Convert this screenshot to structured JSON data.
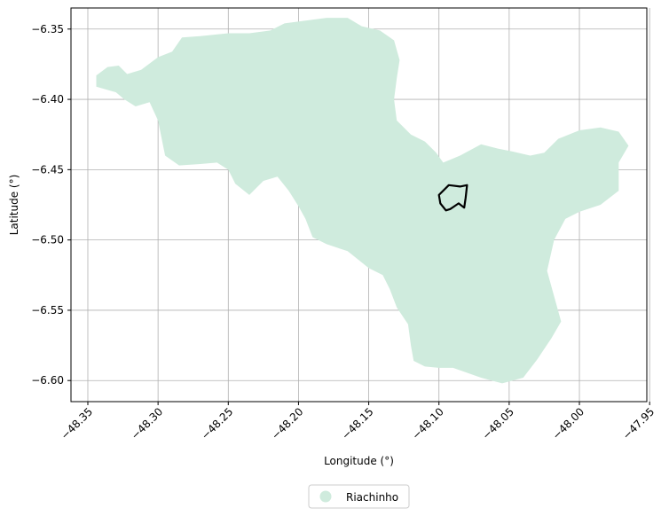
{
  "chart_data": {
    "type": "map",
    "xlabel": "Longitude (°)",
    "ylabel": "Latitude (°)",
    "xlim": [
      -48.362,
      -47.952
    ],
    "ylim": [
      -6.615,
      -6.335
    ],
    "x_ticks": [
      -48.35,
      -48.3,
      -48.25,
      -48.2,
      -48.15,
      -48.1,
      -48.05,
      -48.0,
      -47.95
    ],
    "x_tick_labels": [
      "−48.35",
      "−48.30",
      "−48.25",
      "−48.20",
      "−48.15",
      "−48.10",
      "−48.05",
      "−48.00",
      "−47.95"
    ],
    "y_ticks": [
      -6.35,
      -6.4,
      -6.45,
      -6.5,
      -6.55,
      -6.6
    ],
    "y_tick_labels": [
      "−6.35",
      "−6.40",
      "−6.45",
      "−6.50",
      "−6.55",
      "−6.60"
    ],
    "grid": true,
    "legend_position": "bottom-center",
    "legend": [
      {
        "label": "Riachinho",
        "color": "#cfebdd"
      }
    ],
    "fill_color": "#cfebdd",
    "outline_color": "#000000",
    "region_polygon": [
      [
        -48.344,
        -6.383
      ],
      [
        -48.336,
        -6.377
      ],
      [
        -48.328,
        -6.376
      ],
      [
        -48.322,
        -6.382
      ],
      [
        -48.312,
        -6.379
      ],
      [
        -48.3,
        -6.37
      ],
      [
        -48.29,
        -6.366
      ],
      [
        -48.283,
        -6.356
      ],
      [
        -48.27,
        -6.355
      ],
      [
        -48.26,
        -6.354
      ],
      [
        -48.25,
        -6.353
      ],
      [
        -48.235,
        -6.353
      ],
      [
        -48.22,
        -6.351
      ],
      [
        -48.21,
        -6.346
      ],
      [
        -48.195,
        -6.344
      ],
      [
        -48.18,
        -6.342
      ],
      [
        -48.165,
        -6.342
      ],
      [
        -48.155,
        -6.348
      ],
      [
        -48.142,
        -6.351
      ],
      [
        -48.132,
        -6.358
      ],
      [
        -48.128,
        -6.372
      ],
      [
        -48.13,
        -6.385
      ],
      [
        -48.132,
        -6.4
      ],
      [
        -48.13,
        -6.415
      ],
      [
        -48.12,
        -6.425
      ],
      [
        -48.11,
        -6.43
      ],
      [
        -48.102,
        -6.438
      ],
      [
        -48.097,
        -6.445
      ],
      [
        -48.085,
        -6.44
      ],
      [
        -48.07,
        -6.432
      ],
      [
        -48.058,
        -6.435
      ],
      [
        -48.048,
        -6.437
      ],
      [
        -48.035,
        -6.44
      ],
      [
        -48.025,
        -6.438
      ],
      [
        -48.015,
        -6.428
      ],
      [
        -48.0,
        -6.422
      ],
      [
        -47.985,
        -6.42
      ],
      [
        -47.972,
        -6.423
      ],
      [
        -47.965,
        -6.433
      ],
      [
        -47.972,
        -6.445
      ],
      [
        -47.972,
        -6.465
      ],
      [
        -47.985,
        -6.475
      ],
      [
        -48.0,
        -6.48
      ],
      [
        -48.01,
        -6.485
      ],
      [
        -48.018,
        -6.5
      ],
      [
        -48.023,
        -6.522
      ],
      [
        -48.018,
        -6.54
      ],
      [
        -48.013,
        -6.558
      ],
      [
        -48.02,
        -6.57
      ],
      [
        -48.03,
        -6.585
      ],
      [
        -48.04,
        -6.598
      ],
      [
        -48.055,
        -6.602
      ],
      [
        -48.07,
        -6.598
      ],
      [
        -48.09,
        -6.591
      ],
      [
        -48.1,
        -6.591
      ],
      [
        -48.11,
        -6.59
      ],
      [
        -48.118,
        -6.586
      ],
      [
        -48.12,
        -6.575
      ],
      [
        -48.122,
        -6.56
      ],
      [
        -48.13,
        -6.548
      ],
      [
        -48.135,
        -6.535
      ],
      [
        -48.14,
        -6.525
      ],
      [
        -48.15,
        -6.52
      ],
      [
        -48.165,
        -6.508
      ],
      [
        -48.18,
        -6.503
      ],
      [
        -48.19,
        -6.498
      ],
      [
        -48.195,
        -6.485
      ],
      [
        -48.2,
        -6.476
      ],
      [
        -48.207,
        -6.465
      ],
      [
        -48.215,
        -6.455
      ],
      [
        -48.225,
        -6.458
      ],
      [
        -48.235,
        -6.468
      ],
      [
        -48.245,
        -6.46
      ],
      [
        -48.25,
        -6.45
      ],
      [
        -48.258,
        -6.445
      ],
      [
        -48.27,
        -6.446
      ],
      [
        -48.285,
        -6.447
      ],
      [
        -48.295,
        -6.44
      ],
      [
        -48.298,
        -6.425
      ],
      [
        -48.3,
        -6.415
      ],
      [
        -48.306,
        -6.402
      ],
      [
        -48.316,
        -6.405
      ],
      [
        -48.324,
        -6.4
      ],
      [
        -48.33,
        -6.395
      ],
      [
        -48.344,
        -6.391
      ]
    ],
    "outline_polygon": [
      [
        -48.1,
        -6.468
      ],
      [
        -48.093,
        -6.461
      ],
      [
        -48.085,
        -6.462
      ],
      [
        -48.08,
        -6.461
      ],
      [
        -48.081,
        -6.47
      ],
      [
        -48.082,
        -6.477
      ],
      [
        -48.086,
        -6.474
      ],
      [
        -48.092,
        -6.478
      ],
      [
        -48.095,
        -6.479
      ],
      [
        -48.099,
        -6.474
      ]
    ]
  }
}
